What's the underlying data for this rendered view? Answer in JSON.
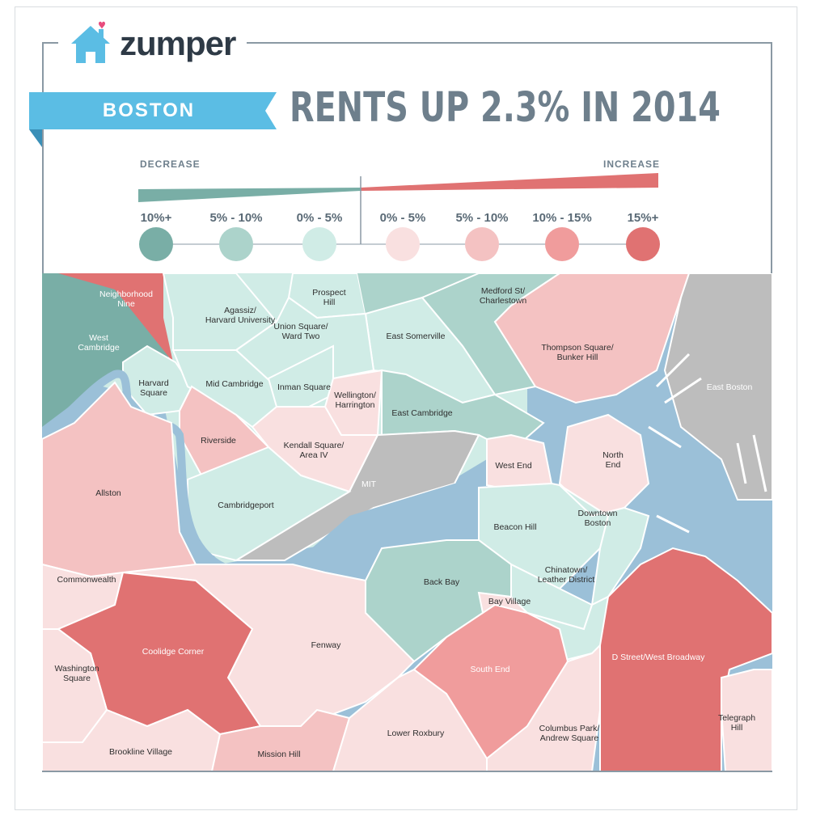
{
  "brand": {
    "name": "zumper"
  },
  "city": "BOSTON",
  "headline": "RENTS UP 2.3% IN 2014",
  "legend": {
    "decrease_label": "DECREASE",
    "increase_label": "INCREASE",
    "categories": [
      {
        "label": "10%+",
        "color": "#79aea6"
      },
      {
        "label": "5% - 10%",
        "color": "#acd3cb"
      },
      {
        "label": "0% - 5%",
        "color": "#d0ece6"
      },
      {
        "label": "0% - 5%",
        "color": "#f9e0e0"
      },
      {
        "label": "5% - 10%",
        "color": "#f4c2c2"
      },
      {
        "label": "10% - 15%",
        "color": "#f09c9c"
      },
      {
        "label": "15%+",
        "color": "#e07272"
      }
    ]
  },
  "colors": {
    "accent_blue": "#5bbde4",
    "water": "#9bc0d8",
    "neutral": "#bdbdbd",
    "frame": "#8a99a4"
  },
  "neighborhoods": [
    {
      "name": "Neighborhood\nNine",
      "category": "15%+"
    },
    {
      "name": "West\nCambridge",
      "category": "decrease 10%+"
    },
    {
      "name": "Agassiz/\nHarvard University",
      "category": "decrease 0% - 5%"
    },
    {
      "name": "Prospect\nHill",
      "category": "decrease 0% - 5%"
    },
    {
      "name": "Union Square/\nWard Two",
      "category": "decrease 0% - 5%"
    },
    {
      "name": "East Somerville",
      "category": "decrease 0% - 5%"
    },
    {
      "name": "Medford St/\nCharlestown",
      "category": "decrease 5% - 10%"
    },
    {
      "name": "Thompson Square/\nBunker Hill",
      "category": "increase 5% - 10%"
    },
    {
      "name": "Harvard\nSquare",
      "category": "decrease 0% - 5%"
    },
    {
      "name": "Mid Cambridge",
      "category": "decrease 0% - 5%"
    },
    {
      "name": "Inman Square",
      "category": "decrease 0% - 5%"
    },
    {
      "name": "Wellington/\nHarrington",
      "category": "increase 0% - 5%"
    },
    {
      "name": "East Cambridge",
      "category": "decrease 5% - 10%"
    },
    {
      "name": "East Boston",
      "category": "no data"
    },
    {
      "name": "Riverside",
      "category": "increase 5% - 10%"
    },
    {
      "name": "Kendall Square/\nArea IV",
      "category": "increase 0% - 5%"
    },
    {
      "name": "West End",
      "category": "increase 0% - 5%"
    },
    {
      "name": "North\nEnd",
      "category": "increase 0% - 5%"
    },
    {
      "name": "MIT",
      "category": "no data"
    },
    {
      "name": "Allston",
      "category": "increase 5% - 10%"
    },
    {
      "name": "Cambridgeport",
      "category": "decrease 0% - 5%"
    },
    {
      "name": "Downtown\nBoston",
      "category": "decrease 0% - 5%"
    },
    {
      "name": "Beacon Hill",
      "category": "decrease 0% - 5%"
    },
    {
      "name": "Chinatown/\nLeather District",
      "category": "decrease 0% - 5%"
    },
    {
      "name": "Commonwealth",
      "category": "increase 0% - 5%"
    },
    {
      "name": "Back Bay",
      "category": "decrease 5% - 10%"
    },
    {
      "name": "Bay Village",
      "category": "increase 0% - 5%"
    },
    {
      "name": "Coolidge Corner",
      "category": "15%+"
    },
    {
      "name": "Fenway",
      "category": "increase 0% - 5%"
    },
    {
      "name": "D Street/West Broadway",
      "category": "15%+"
    },
    {
      "name": "Washington\nSquare",
      "category": "increase 0% - 5%"
    },
    {
      "name": "South End",
      "category": "10% - 15%"
    },
    {
      "name": "Telegraph\nHill",
      "category": "increase 0% - 5%"
    },
    {
      "name": "Columbus Park/\nAndrew Square",
      "category": "increase 0% - 5%"
    },
    {
      "name": "Lower Roxbury",
      "category": "increase 0% - 5%"
    },
    {
      "name": "Brookline Village",
      "category": "increase 0% - 5%"
    },
    {
      "name": "Mission Hill",
      "category": "increase 5% - 10%"
    }
  ]
}
